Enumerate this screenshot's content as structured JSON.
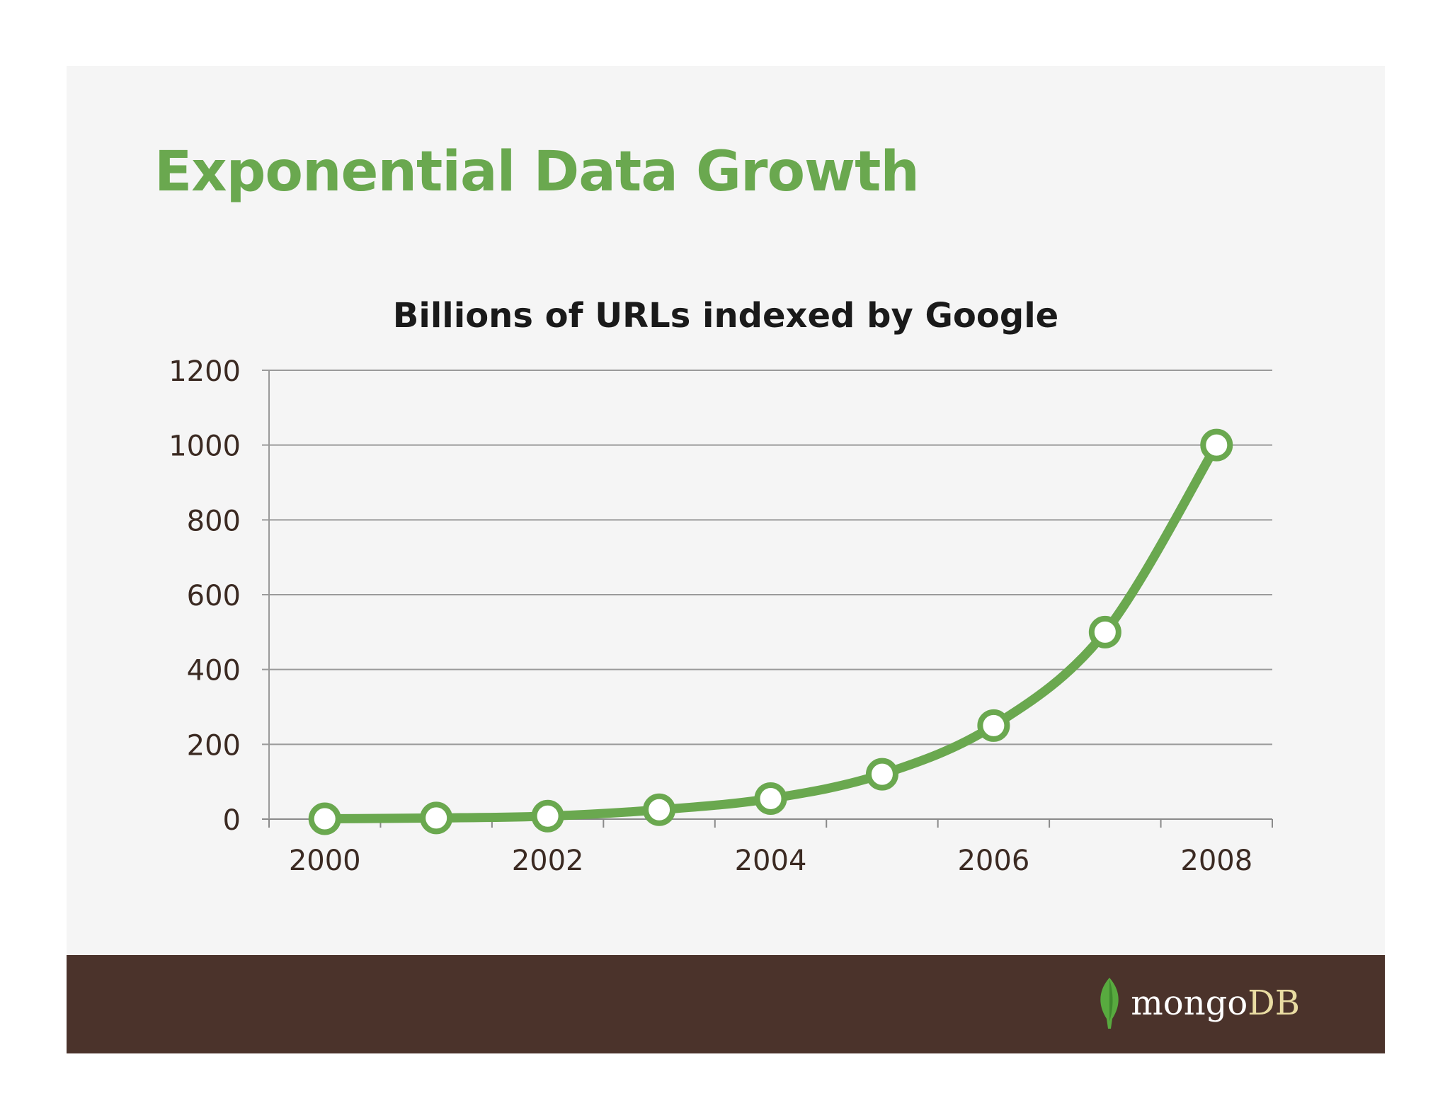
{
  "slide": {
    "title": "Exponential Data Growth"
  },
  "chart_data": {
    "type": "line",
    "title": "Billions of URLs indexed by Google",
    "xlabel": "",
    "ylabel": "",
    "x": [
      2000,
      2001,
      2002,
      2003,
      2004,
      2005,
      2006,
      2007,
      2008
    ],
    "x_tick_labels": [
      "2000",
      "2002",
      "2004",
      "2006",
      "2008"
    ],
    "series": [
      {
        "values": [
          1,
          3,
          8,
          25,
          55,
          120,
          250,
          500,
          1000
        ]
      }
    ],
    "ylim": [
      0,
      1200
    ],
    "y_ticks": [
      0,
      200,
      400,
      600,
      800,
      1000,
      1200
    ],
    "grid": true,
    "smooth": true,
    "line_color": "#6aa84f",
    "marker": "white-circle"
  },
  "footer": {
    "logo_part1": "mongo",
    "logo_part2": "DB",
    "leaf_icon": "leaf-icon",
    "background": "#4b332b"
  },
  "colors": {
    "accent": "#6aa84f",
    "title": "#6aa84f",
    "axis_text": "#3b2a22"
  }
}
